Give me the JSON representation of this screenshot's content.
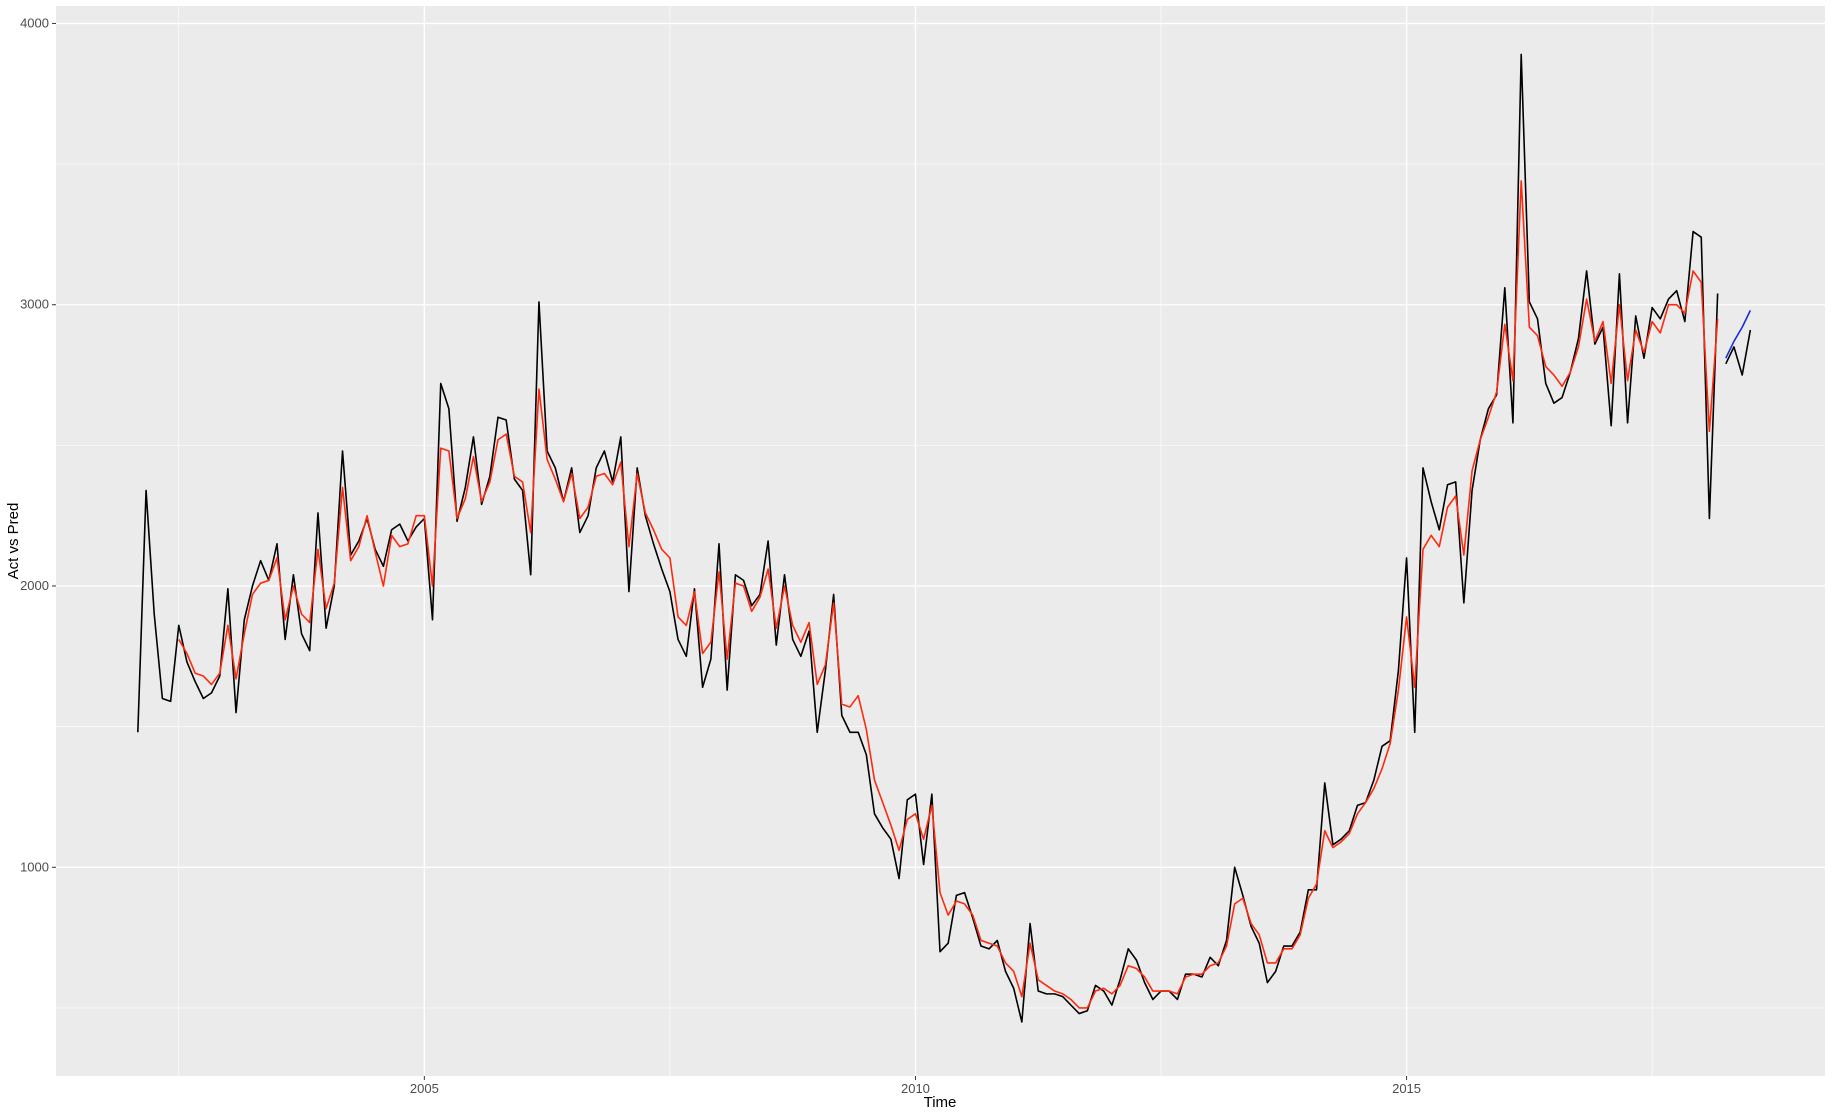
{
  "chart_data": {
    "type": "line",
    "x_label": "Time",
    "y_label": "Act vs Pred",
    "xlim": [
      2001.25,
      2019.26
    ],
    "ylim": [
      258,
      4062
    ],
    "xticks": [
      2005,
      2010,
      2015
    ],
    "yticks": [
      1000,
      2000,
      3000,
      4000
    ],
    "xminor": [
      2002.5,
      2007.5,
      2012.5,
      2017.5
    ],
    "yminor": [
      500,
      1500,
      2500,
      3500
    ],
    "grid": true,
    "background": "#ebebeb",
    "grid_color": "#ffffff",
    "x": [
      2002.083,
      2002.167,
      2002.25,
      2002.333,
      2002.417,
      2002.5,
      2002.583,
      2002.667,
      2002.75,
      2002.833,
      2002.917,
      2003,
      2003.083,
      2003.167,
      2003.25,
      2003.333,
      2003.417,
      2003.5,
      2003.583,
      2003.667,
      2003.75,
      2003.833,
      2003.917,
      2004,
      2004.083,
      2004.167,
      2004.25,
      2004.333,
      2004.417,
      2004.5,
      2004.583,
      2004.667,
      2004.75,
      2004.833,
      2004.917,
      2005,
      2005.083,
      2005.167,
      2005.25,
      2005.333,
      2005.417,
      2005.5,
      2005.583,
      2005.667,
      2005.75,
      2005.833,
      2005.917,
      2006,
      2006.083,
      2006.167,
      2006.25,
      2006.333,
      2006.417,
      2006.5,
      2006.583,
      2006.667,
      2006.75,
      2006.833,
      2006.917,
      2007,
      2007.083,
      2007.167,
      2007.25,
      2007.333,
      2007.417,
      2007.5,
      2007.583,
      2007.667,
      2007.75,
      2007.833,
      2007.917,
      2008,
      2008.083,
      2008.167,
      2008.25,
      2008.333,
      2008.417,
      2008.5,
      2008.583,
      2008.667,
      2008.75,
      2008.833,
      2008.917,
      2009,
      2009.083,
      2009.167,
      2009.25,
      2009.333,
      2009.417,
      2009.5,
      2009.583,
      2009.667,
      2009.75,
      2009.833,
      2009.917,
      2010,
      2010.083,
      2010.167,
      2010.25,
      2010.333,
      2010.417,
      2010.5,
      2010.583,
      2010.667,
      2010.75,
      2010.833,
      2010.917,
      2011,
      2011.083,
      2011.167,
      2011.25,
      2011.333,
      2011.417,
      2011.5,
      2011.583,
      2011.667,
      2011.75,
      2011.833,
      2011.917,
      2012,
      2012.083,
      2012.167,
      2012.25,
      2012.333,
      2012.417,
      2012.5,
      2012.583,
      2012.667,
      2012.75,
      2012.833,
      2012.917,
      2013,
      2013.083,
      2013.167,
      2013.25,
      2013.333,
      2013.417,
      2013.5,
      2013.583,
      2013.667,
      2013.75,
      2013.833,
      2013.917,
      2014,
      2014.083,
      2014.167,
      2014.25,
      2014.333,
      2014.417,
      2014.5,
      2014.583,
      2014.667,
      2014.75,
      2014.833,
      2014.917,
      2015,
      2015.083,
      2015.167,
      2015.25,
      2015.333,
      2015.417,
      2015.5,
      2015.583,
      2015.667,
      2015.75,
      2015.833,
      2015.917,
      2016,
      2016.083,
      2016.167,
      2016.25,
      2016.333,
      2016.417,
      2016.5,
      2016.583,
      2016.667,
      2016.75,
      2016.833,
      2016.917,
      2017,
      2017.083,
      2017.167,
      2017.25,
      2017.333,
      2017.417,
      2017.5,
      2017.583,
      2017.667,
      2017.75,
      2017.833,
      2017.917,
      2018,
      2018.083,
      2018.167
    ],
    "series": [
      {
        "color": "#000000",
        "values": [
          1480,
          2340,
          1900,
          1600,
          1590,
          1860,
          1730,
          1660,
          1600,
          1620,
          1680,
          1990,
          1550,
          1880,
          2000,
          2090,
          2020,
          2150,
          1810,
          2040,
          1830,
          1770,
          2260,
          1850,
          2000,
          2480,
          2110,
          2160,
          2240,
          2130,
          2070,
          2200,
          2220,
          2160,
          2210,
          2240,
          1880,
          2720,
          2630,
          2230,
          2350,
          2530,
          2290,
          2390,
          2600,
          2590,
          2380,
          2340,
          2040,
          3010,
          2480,
          2420,
          2300,
          2420,
          2190,
          2250,
          2420,
          2480,
          2370,
          2530,
          1980,
          2420,
          2250,
          2150,
          2060,
          1980,
          1810,
          1750,
          1990,
          1640,
          1740,
          2150,
          1630,
          2040,
          2020,
          1930,
          1970,
          2160,
          1790,
          2040,
          1810,
          1750,
          1840,
          1480,
          1700,
          1970,
          1540,
          1480,
          1480,
          1400,
          1190,
          1140,
          1100,
          960,
          1240,
          1260,
          1010,
          1260,
          700,
          730,
          900,
          910,
          820,
          720,
          710,
          740,
          630,
          570,
          450,
          800,
          560,
          550,
          550,
          540,
          510,
          480,
          490,
          580,
          560,
          510,
          600,
          710,
          670,
          590,
          530,
          560,
          560,
          530,
          620,
          620,
          610,
          680,
          650,
          740,
          1000,
          900,
          790,
          730,
          590,
          630,
          720,
          720,
          770,
          920,
          920,
          1300,
          1080,
          1100,
          1130,
          1220,
          1230,
          1310,
          1430,
          1450,
          1700,
          2100,
          1480,
          2420,
          2300,
          2200,
          2360,
          2370,
          1940,
          2340,
          2520,
          2630,
          2680,
          3060,
          2580,
          3890,
          3010,
          2950,
          2720,
          2650,
          2670,
          2760,
          2880,
          3120,
          2860,
          2920,
          2570,
          3110,
          2580,
          2960,
          2810,
          2990,
          2950,
          3020,
          3050,
          2940,
          3260,
          3240,
          2240,
          3040
        ]
      },
      {
        "color": "#ff2a0d",
        "values": [
          null,
          null,
          null,
          null,
          null,
          1810,
          1760,
          1690,
          1680,
          1650,
          1690,
          1860,
          1670,
          1830,
          1970,
          2010,
          2020,
          2100,
          1880,
          2000,
          1900,
          1870,
          2130,
          1920,
          2010,
          2350,
          2090,
          2140,
          2250,
          2120,
          2000,
          2180,
          2140,
          2150,
          2250,
          2250,
          2000,
          2490,
          2480,
          2240,
          2310,
          2460,
          2300,
          2370,
          2520,
          2540,
          2390,
          2370,
          2190,
          2700,
          2450,
          2380,
          2300,
          2400,
          2240,
          2280,
          2390,
          2400,
          2360,
          2440,
          2140,
          2400,
          2260,
          2200,
          2130,
          2100,
          1890,
          1860,
          1980,
          1760,
          1800,
          2050,
          1740,
          2010,
          2000,
          1910,
          1960,
          2060,
          1850,
          2000,
          1860,
          1800,
          1870,
          1650,
          1720,
          1940,
          1580,
          1570,
          1610,
          1490,
          1310,
          1230,
          1150,
          1060,
          1170,
          1190,
          1100,
          1220,
          910,
          830,
          880,
          870,
          830,
          740,
          730,
          720,
          660,
          630,
          540,
          730,
          600,
          580,
          560,
          550,
          530,
          500,
          500,
          560,
          570,
          550,
          580,
          650,
          640,
          610,
          560,
          560,
          560,
          550,
          610,
          620,
          620,
          650,
          660,
          720,
          870,
          890,
          800,
          760,
          660,
          660,
          710,
          710,
          760,
          890,
          940,
          1130,
          1070,
          1090,
          1120,
          1190,
          1230,
          1280,
          1350,
          1440,
          1630,
          1890,
          1640,
          2130,
          2180,
          2140,
          2280,
          2320,
          2110,
          2410,
          2520,
          2600,
          2690,
          2930,
          2730,
          3440,
          2920,
          2890,
          2780,
          2750,
          2710,
          2760,
          2850,
          3020,
          2870,
          2940,
          2720,
          3000,
          2730,
          2910,
          2830,
          2940,
          2900,
          3000,
          3000,
          2970,
          3120,
          3080,
          2550,
          2950
        ]
      },
      {
        "color": "#000000",
        "x": [
          2018.25,
          2018.333,
          2018.417,
          2018.5
        ],
        "values": [
          2790,
          2850,
          2750,
          2910
        ]
      },
      {
        "color": "#1a2fd6",
        "x": [
          2018.25,
          2018.333,
          2018.417,
          2018.5
        ],
        "values": [
          2810,
          2870,
          2920,
          2980
        ]
      }
    ]
  }
}
